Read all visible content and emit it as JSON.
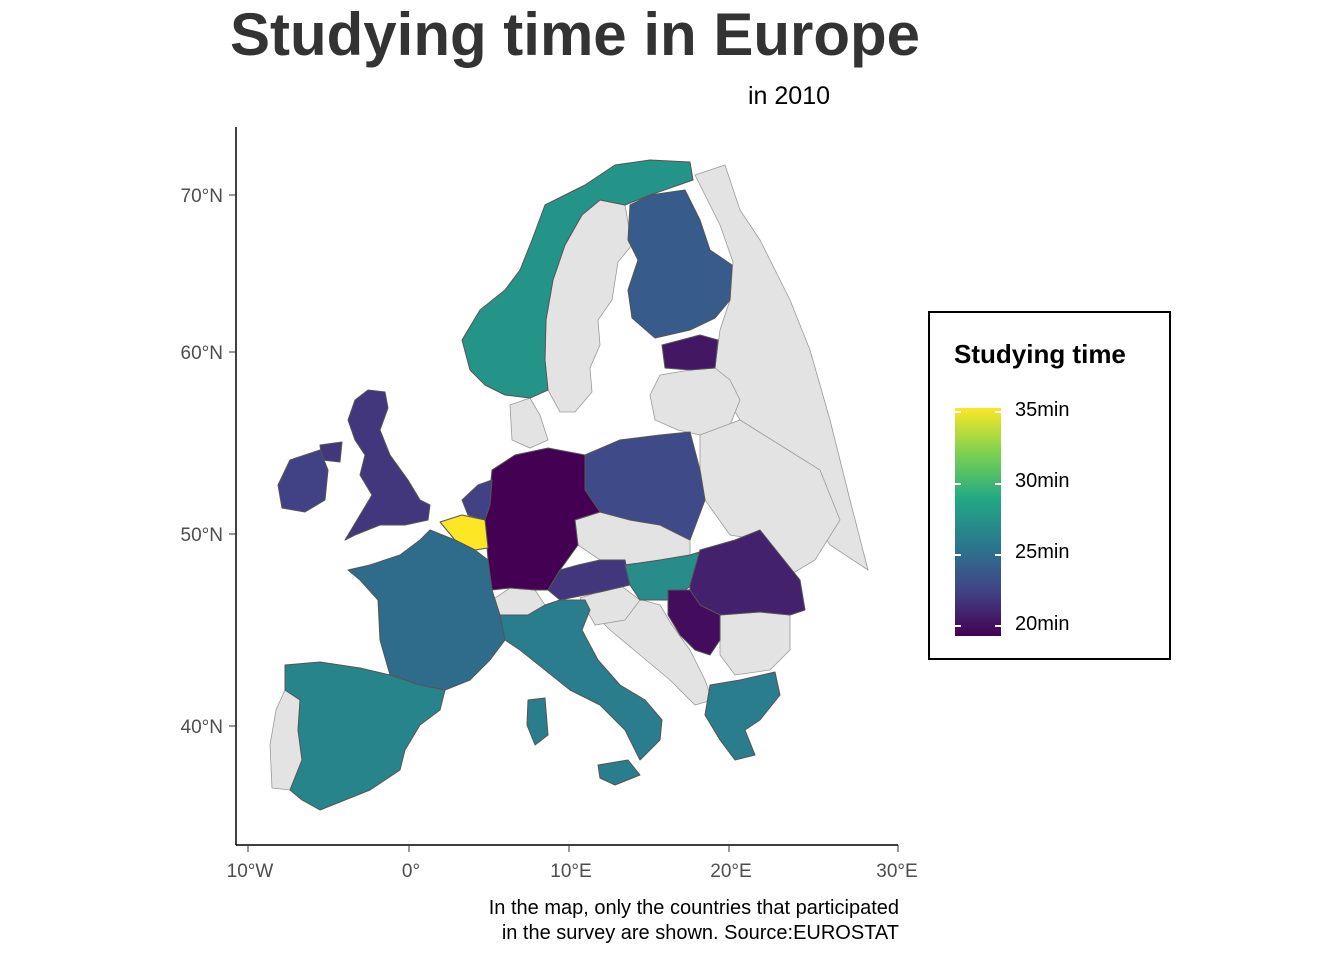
{
  "title": "Studying time in Europe",
  "subtitle": "in 2010",
  "caption": {
    "line1": "In the map, only the countries that participated",
    "line2": "in the survey are shown. Source:EUROSTAT"
  },
  "axes": {
    "x_ticks": [
      "10°W",
      "0°",
      "10°E",
      "20°E",
      "30°E"
    ],
    "y_ticks": [
      "70°N",
      "60°N",
      "50°N",
      "40°N"
    ]
  },
  "legend": {
    "title": "Studying time",
    "labels": [
      "35min",
      "30min",
      "25min",
      "20min"
    ],
    "range": [
      19.5,
      35
    ],
    "colors": [
      "#440154",
      "#414487",
      "#2A788E",
      "#22A884",
      "#7AD151",
      "#FDE725"
    ]
  },
  "colors": {
    "no_data": "#e3e3e3",
    "border": "#555555"
  },
  "map_data": [
    {
      "country": "Belgium",
      "value": 35
    },
    {
      "country": "Norway",
      "value": 27.5
    },
    {
      "country": "Spain",
      "value": 26.5
    },
    {
      "country": "Italy",
      "value": 26
    },
    {
      "country": "Greece",
      "value": 26
    },
    {
      "country": "Hungary",
      "value": 27
    },
    {
      "country": "France",
      "value": 25
    },
    {
      "country": "Finland",
      "value": 24
    },
    {
      "country": "Poland",
      "value": 23
    },
    {
      "country": "United Kingdom",
      "value": 22
    },
    {
      "country": "Ireland",
      "value": 22.5
    },
    {
      "country": "Netherlands",
      "value": 22.5
    },
    {
      "country": "Austria",
      "value": 22
    },
    {
      "country": "Romania",
      "value": 21
    },
    {
      "country": "Estonia",
      "value": 20.5
    },
    {
      "country": "Serbia",
      "value": 20
    },
    {
      "country": "Germany",
      "value": 19.5
    }
  ]
}
